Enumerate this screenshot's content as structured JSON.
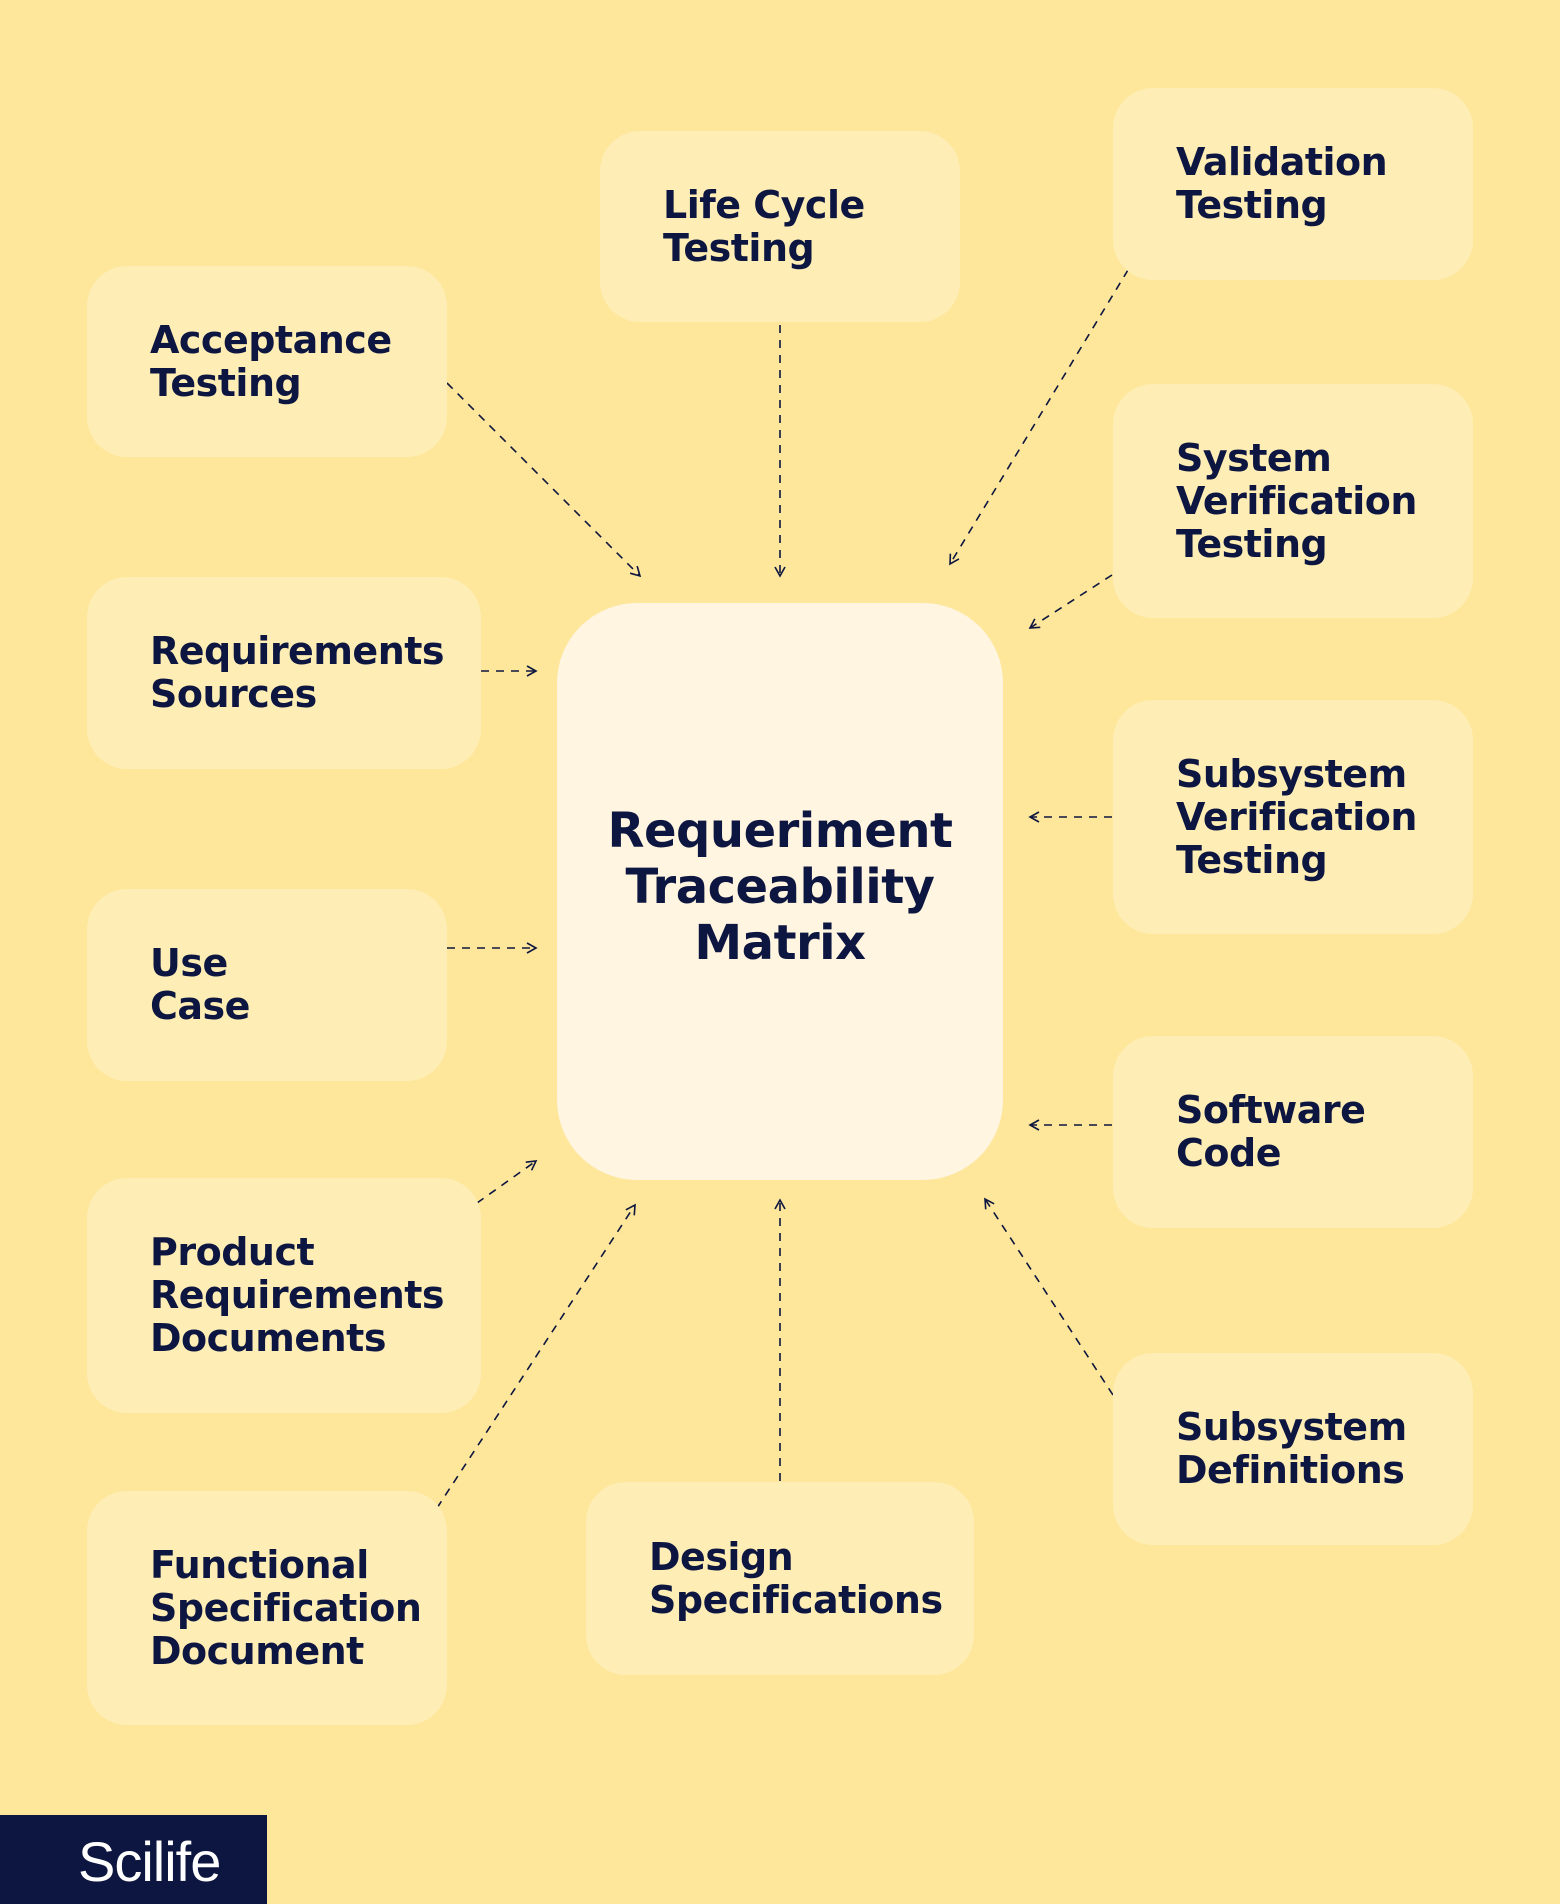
{
  "diagram": {
    "center_title": "Requeriment\nTraceability\nMatrix",
    "nodes": {
      "acceptance_testing": "Acceptance\nTesting",
      "life_cycle_testing": "Life Cycle\nTesting",
      "validation_testing": "Validation\nTesting",
      "system_verification_testing": "System\nVerification\nTesting",
      "requirements_sources": "Requirements\nSources",
      "subsystem_verification_testing": "Subsystem\nVerification\nTesting",
      "use_case": "Use\nCase",
      "software_code": "Software\nCode",
      "product_requirements_documents": "Product\nRequirements\nDocuments",
      "subsystem_definitions": "Subsystem\nDefinitions",
      "functional_specification_document": "Functional\nSpecification\nDocument",
      "design_specifications": "Design\nSpecifications"
    }
  },
  "brand": {
    "logo_text": "Scilife"
  },
  "colors": {
    "background": "#fee69a",
    "box_fill": "#feeeb5",
    "center_fill": "#fff5e0",
    "text": "#0d1640",
    "logo_bg": "#0d1640"
  }
}
